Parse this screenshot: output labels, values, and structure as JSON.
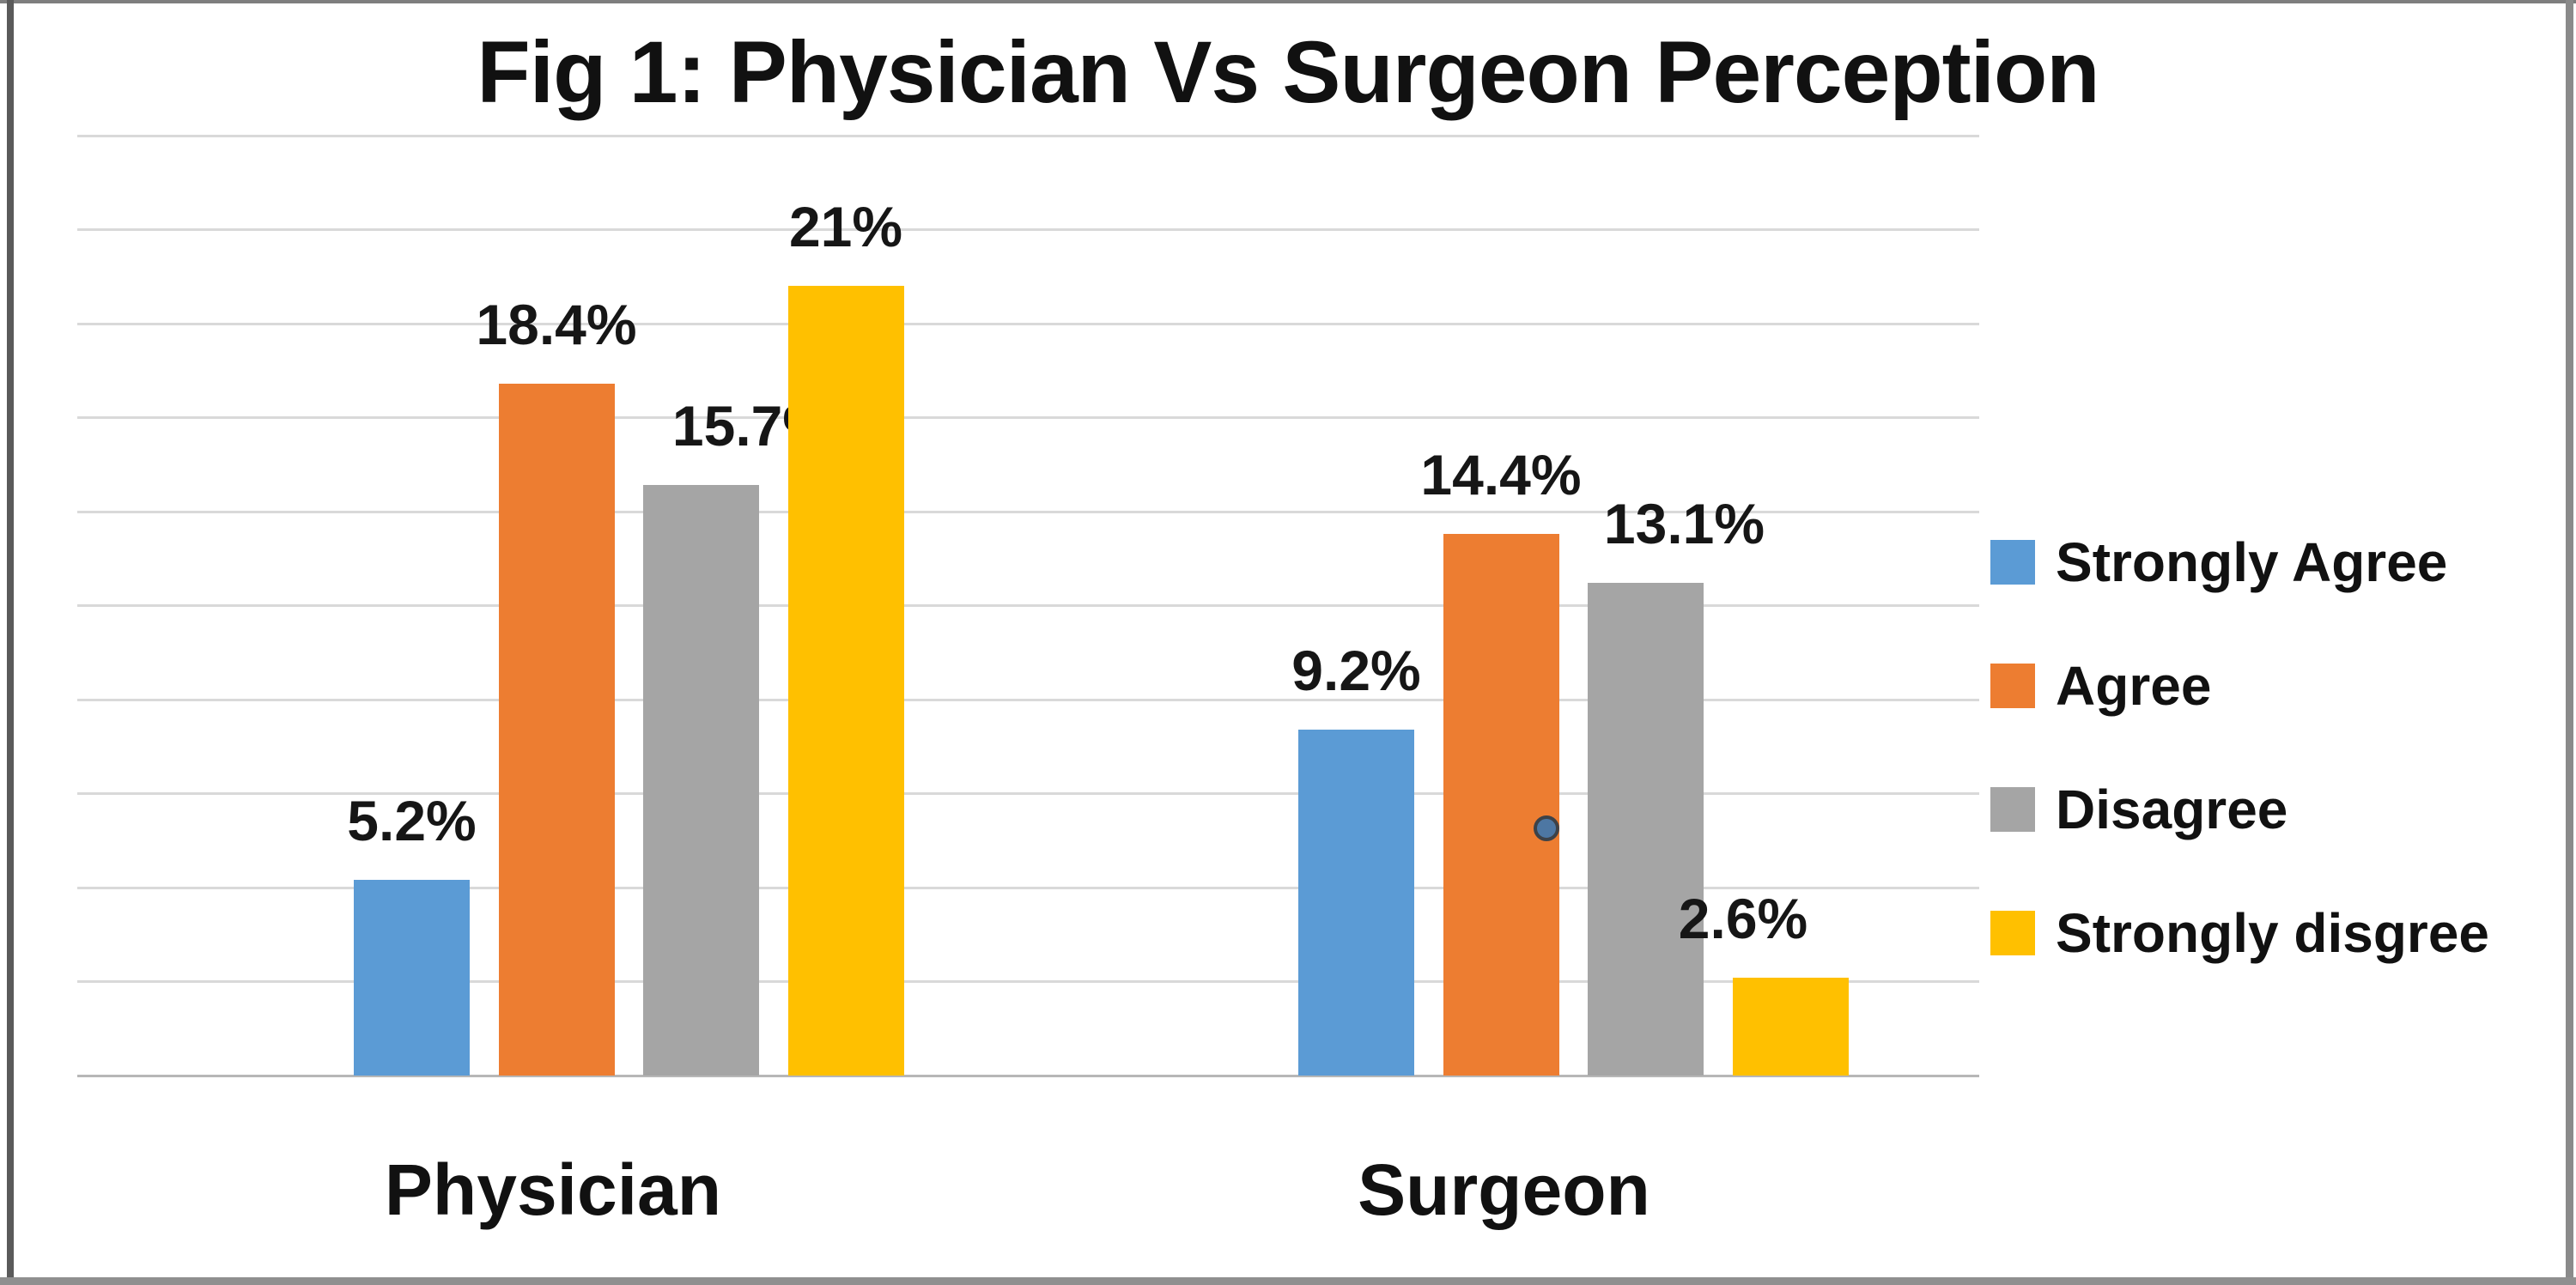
{
  "title": "Fig 1: Physician Vs Surgeon Perception",
  "chart_data": {
    "type": "bar",
    "title": "Fig 1: Physician Vs Surgeon Perception",
    "categories": [
      "Physician",
      "Surgeon"
    ],
    "series": [
      {
        "name": "Strongly Agree",
        "color": "#5B9BD5",
        "values": [
          5.2,
          9.2
        ],
        "labels": [
          "5.2%",
          "9.2%"
        ],
        "label_dx": [
          0,
          0
        ]
      },
      {
        "name": "Agree",
        "color": "#ED7D31",
        "values": [
          18.4,
          14.4
        ],
        "labels": [
          "18.4%",
          "14.4%"
        ],
        "label_dx": [
          0,
          0
        ]
      },
      {
        "name": "Disagree",
        "color": "#A5A5A5",
        "values": [
          15.7,
          13.1
        ],
        "labels": [
          "15.7%",
          "13.1%"
        ],
        "label_dx": [
          60,
          45
        ]
      },
      {
        "name": "Strongly disgree",
        "color": "#FFC000",
        "values": [
          21,
          2.6
        ],
        "labels": [
          "21%",
          "2.6%"
        ],
        "label_dx": [
          0,
          -55
        ]
      }
    ],
    "xlabel": "",
    "ylabel": "",
    "ylim": [
      0,
      25
    ],
    "gridline_step": 2.5,
    "grid": true,
    "legend_position": "right",
    "value_suffix": "%",
    "colors": {
      "gridline": "#D9D9D9",
      "axis_line": "#B7B7B7",
      "text": "#111111",
      "background": "#FFFFFF"
    }
  }
}
